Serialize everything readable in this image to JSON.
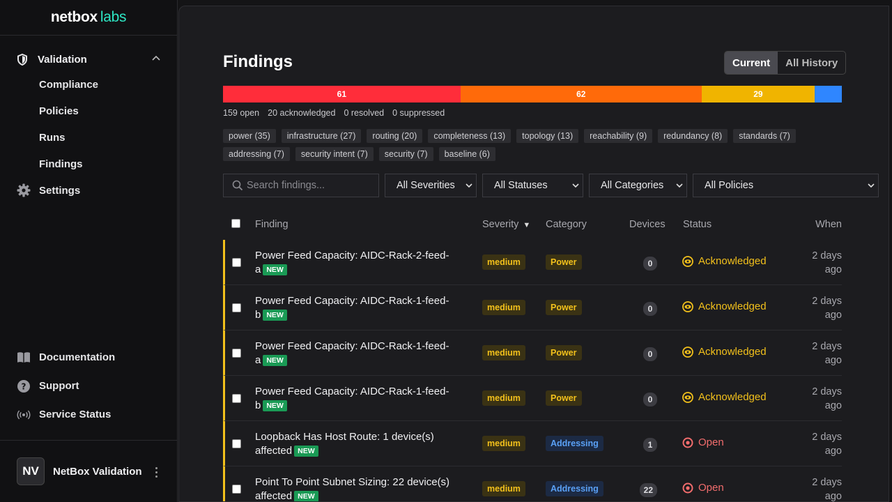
{
  "brand": {
    "primary": "netbox",
    "secondary": "labs"
  },
  "sidebar": {
    "group": {
      "label": "Validation",
      "icon": "shield-icon"
    },
    "sub_items": [
      {
        "label": "Compliance"
      },
      {
        "label": "Policies"
      },
      {
        "label": "Runs"
      },
      {
        "label": "Findings"
      }
    ],
    "settings": {
      "label": "Settings",
      "icon": "gear-icon"
    },
    "bottom": [
      {
        "label": "Documentation",
        "icon": "book-icon"
      },
      {
        "label": "Support",
        "icon": "help-icon"
      },
      {
        "label": "Service Status",
        "icon": "broadcast-icon"
      }
    ],
    "user": {
      "initials": "NV",
      "name": "NetBox Validation"
    }
  },
  "page": {
    "title": "Findings",
    "toggle": {
      "current": "Current",
      "history": "All History",
      "selected": "Current"
    }
  },
  "severity_bar": {
    "segments": [
      {
        "label": "61",
        "value": 61,
        "color": "#ff2d3a"
      },
      {
        "label": "62",
        "value": 62,
        "color": "#ff6a0a"
      },
      {
        "label": "29",
        "value": 29,
        "color": "#f0b400"
      },
      {
        "label": "",
        "value": 7,
        "color": "#2f86ff"
      }
    ]
  },
  "stats": {
    "open": "159 open",
    "acknowledged": "20 acknowledged",
    "resolved": "0 resolved",
    "suppressed": "0 suppressed"
  },
  "tags": [
    "power (35)",
    "infrastructure (27)",
    "routing (20)",
    "completeness (13)",
    "topology (13)",
    "reachability (9)",
    "redundancy (8)",
    "standards (7)",
    "addressing (7)",
    "security intent (7)",
    "security (7)",
    "baseline (6)"
  ],
  "filters": {
    "search_placeholder": "Search findings...",
    "severity": "All Severities",
    "status": "All Statuses",
    "category": "All Categories",
    "policy": "All Policies"
  },
  "table": {
    "headers": {
      "finding": "Finding",
      "severity": "Severity",
      "sort_indicator": "▼",
      "category": "Category",
      "devices": "Devices",
      "status": "Status",
      "when": "When"
    },
    "new_badge": "NEW",
    "rows": [
      {
        "line1": "Power Feed Capacity: AIDC-Rack-2-feed-",
        "line2": "a",
        "severity": "medium",
        "category": "Power",
        "category_kind": "power",
        "devices": "0",
        "status": "Acknowledged",
        "status_kind": "ack",
        "when1": "2 days",
        "when2": "ago"
      },
      {
        "line1": "Power Feed Capacity: AIDC-Rack-1-feed-",
        "line2": "b",
        "severity": "medium",
        "category": "Power",
        "category_kind": "power",
        "devices": "0",
        "status": "Acknowledged",
        "status_kind": "ack",
        "when1": "2 days",
        "when2": "ago"
      },
      {
        "line1": "Power Feed Capacity: AIDC-Rack-1-feed-",
        "line2": "a",
        "severity": "medium",
        "category": "Power",
        "category_kind": "power",
        "devices": "0",
        "status": "Acknowledged",
        "status_kind": "ack",
        "when1": "2 days",
        "when2": "ago"
      },
      {
        "line1": "Power Feed Capacity: AIDC-Rack-1-feed-",
        "line2": "b",
        "severity": "medium",
        "category": "Power",
        "category_kind": "power",
        "devices": "0",
        "status": "Acknowledged",
        "status_kind": "ack",
        "when1": "2 days",
        "when2": "ago"
      },
      {
        "line1": "Loopback Has Host Route: 1 device(s)",
        "line2": "affected",
        "severity": "medium",
        "category": "Addressing",
        "category_kind": "addr",
        "devices": "1",
        "status": "Open",
        "status_kind": "open",
        "when1": "2 days",
        "when2": "ago"
      },
      {
        "line1": "Point To Point Subnet Sizing: 22 device(s)",
        "line2": "affected",
        "severity": "medium",
        "category": "Addressing",
        "category_kind": "addr",
        "devices": "22",
        "status": "Open",
        "status_kind": "open",
        "when1": "2 days",
        "when2": "ago"
      }
    ]
  }
}
